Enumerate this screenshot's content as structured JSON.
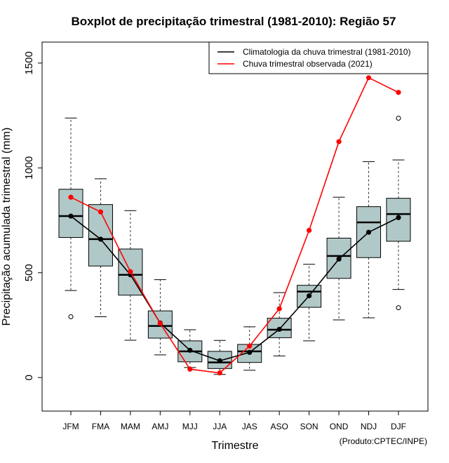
{
  "chart_data": {
    "type": "boxplot",
    "title": "Boxplot de precipitação trimestral (1981-2010): Região 57",
    "xlabel": "Trimestre",
    "ylabel": "Precipitação acumulada trimestral (mm)",
    "credit": "(Produto:CPTEC/INPE)",
    "ylim": [
      -160,
      1600
    ],
    "yticks": [
      0,
      500,
      1000,
      1500
    ],
    "categories": [
      "JFM",
      "FMA",
      "MAM",
      "AMJ",
      "MJJ",
      "JJA",
      "JAS",
      "ASO",
      "SON",
      "OND",
      "NDJ",
      "DJF"
    ],
    "boxes": [
      {
        "low": 415,
        "q1": 668,
        "median": 770,
        "q3": 898,
        "high": 1238,
        "outliers": [
          290
        ]
      },
      {
        "low": 290,
        "q1": 532,
        "median": 660,
        "q3": 825,
        "high": 948,
        "outliers": []
      },
      {
        "low": 178,
        "q1": 393,
        "median": 490,
        "q3": 613,
        "high": 796,
        "outliers": []
      },
      {
        "low": 108,
        "q1": 188,
        "median": 246,
        "q3": 318,
        "high": 467,
        "outliers": []
      },
      {
        "low": 48,
        "q1": 75,
        "median": 125,
        "q3": 175,
        "high": 228,
        "outliers": []
      },
      {
        "low": 15,
        "q1": 43,
        "median": 72,
        "q3": 125,
        "high": 177,
        "outliers": []
      },
      {
        "low": 35,
        "q1": 72,
        "median": 125,
        "q3": 158,
        "high": 242,
        "outliers": []
      },
      {
        "low": 103,
        "q1": 190,
        "median": 228,
        "q3": 283,
        "high": 405,
        "outliers": []
      },
      {
        "low": 175,
        "q1": 335,
        "median": 410,
        "q3": 440,
        "high": 540,
        "outliers": []
      },
      {
        "low": 275,
        "q1": 473,
        "median": 580,
        "q3": 665,
        "high": 860,
        "outliers": []
      },
      {
        "low": 285,
        "q1": 572,
        "median": 740,
        "q3": 815,
        "high": 1030,
        "outliers": []
      },
      {
        "low": 420,
        "q1": 650,
        "median": 780,
        "q3": 855,
        "high": 1038,
        "outliers": [
          333,
          1237
        ]
      }
    ],
    "series": [
      {
        "name": "Climatologia da chuva trimestral (1981-2010)",
        "color": "#000000",
        "values": [
          770,
          660,
          490,
          260,
          130,
          80,
          120,
          230,
          390,
          565,
          693,
          763
        ]
      },
      {
        "name": "Chuva trimestral observada (2021)",
        "color": "#ff0000",
        "values": [
          860,
          790,
          505,
          258,
          40,
          22,
          150,
          328,
          702,
          1125,
          1430,
          1360
        ]
      }
    ],
    "box_fill": "#b1c8c8",
    "legend_position": "top-right"
  }
}
